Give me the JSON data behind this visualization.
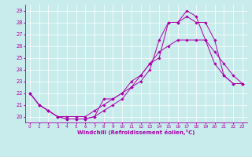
{
  "xlabel": "Windchill (Refroidissement éolien,°C)",
  "xlim": [
    -0.5,
    23.5
  ],
  "ylim": [
    19.5,
    29.5
  ],
  "yticks": [
    20,
    21,
    22,
    23,
    24,
    25,
    26,
    27,
    28,
    29
  ],
  "xticks": [
    0,
    1,
    2,
    3,
    4,
    5,
    6,
    7,
    8,
    9,
    10,
    11,
    12,
    13,
    14,
    15,
    16,
    17,
    18,
    19,
    20,
    21,
    22,
    23
  ],
  "bg_color": "#c8ecec",
  "line_color": "#aa00aa",
  "grid_color": "#ffffff",
  "series_x": [
    [
      0,
      1,
      2,
      3,
      4,
      5,
      6,
      7,
      8,
      9,
      10,
      11,
      12,
      13,
      14,
      15,
      16,
      17,
      18,
      19,
      20,
      21,
      22,
      23
    ],
    [
      0,
      1,
      2,
      3,
      4,
      5,
      6,
      7,
      8,
      9,
      10,
      11,
      12,
      13,
      14,
      15,
      16,
      17,
      18,
      19,
      20,
      21,
      22,
      23
    ],
    [
      0,
      1,
      2,
      3,
      4,
      5,
      6,
      7,
      8,
      9,
      10,
      11,
      12,
      13,
      14,
      15,
      16,
      17,
      18,
      19,
      20,
      21,
      22,
      23
    ]
  ],
  "series_y": [
    [
      22.0,
      21.0,
      20.5,
      20.0,
      19.8,
      19.8,
      19.8,
      20.0,
      21.5,
      21.5,
      22.0,
      23.0,
      23.5,
      24.5,
      25.0,
      28.0,
      28.0,
      29.0,
      28.5,
      26.5,
      24.5,
      23.5,
      22.8,
      22.8
    ],
    [
      22.0,
      21.0,
      20.5,
      20.0,
      19.8,
      19.8,
      19.8,
      20.0,
      20.5,
      21.0,
      21.5,
      22.5,
      23.0,
      24.0,
      26.5,
      28.0,
      28.0,
      28.5,
      28.0,
      28.0,
      26.5,
      23.5,
      22.8,
      22.8
    ],
    [
      22.0,
      21.0,
      20.5,
      20.0,
      20.0,
      20.0,
      20.0,
      20.5,
      21.0,
      21.5,
      22.0,
      22.5,
      23.5,
      24.5,
      25.5,
      26.0,
      26.5,
      26.5,
      26.5,
      26.5,
      25.5,
      24.5,
      23.5,
      22.8
    ]
  ],
  "figsize": [
    3.2,
    2.0
  ],
  "dpi": 100
}
